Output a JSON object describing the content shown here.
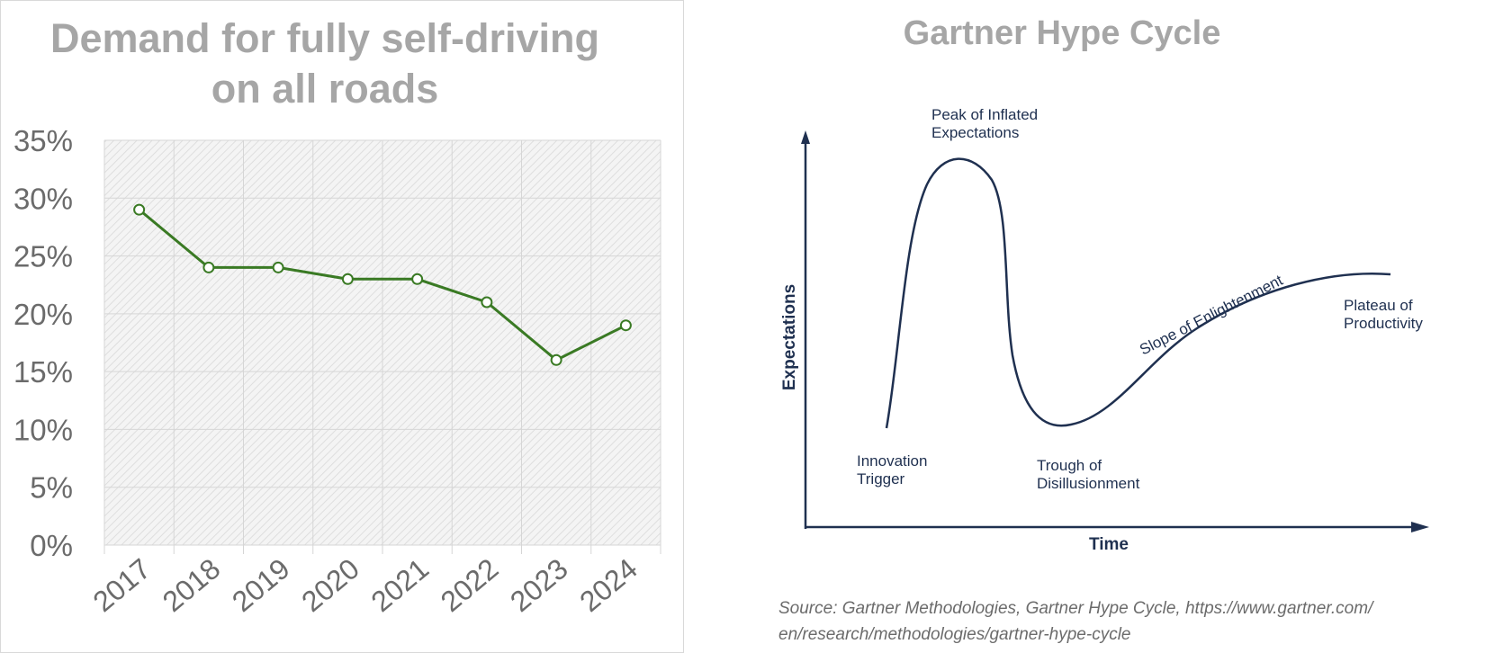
{
  "left_title": "Demand for fully self-driving on all roads",
  "chart_data": {
    "type": "line",
    "title": "Demand for fully self-driving on all roads",
    "categories": [
      "2017",
      "2018",
      "2019",
      "2020",
      "2021",
      "2022",
      "2023",
      "2024"
    ],
    "values": [
      29,
      24,
      24,
      23,
      23,
      21,
      16,
      19
    ],
    "yticks": [
      "0%",
      "5%",
      "10%",
      "15%",
      "20%",
      "25%",
      "30%",
      "35%"
    ],
    "ylim": [
      0,
      35
    ],
    "xlabel": "",
    "ylabel": "",
    "grid": true,
    "line_color": "#3a7a24"
  },
  "hype_cycle": {
    "title": "Gartner Hype Cycle",
    "y_axis_label": "Expectations",
    "x_axis_label": "Time",
    "phases": {
      "trigger_1": "Innovation",
      "trigger_2": "Trigger",
      "peak_1": "Peak of Inflated",
      "peak_2": "Expectations",
      "trough_1": "Trough of",
      "trough_2": "Disillusionment",
      "slope": "Slope of Enlightenment",
      "plateau_1": "Plateau of",
      "plateau_2": "Productivity"
    },
    "curve_color": "#1f3050"
  },
  "source": {
    "line1": "Source: Gartner Methodologies, Gartner Hype Cycle, https://www.gartner.com/",
    "line2": "en/research/methodologies/gartner-hype-cycle"
  }
}
